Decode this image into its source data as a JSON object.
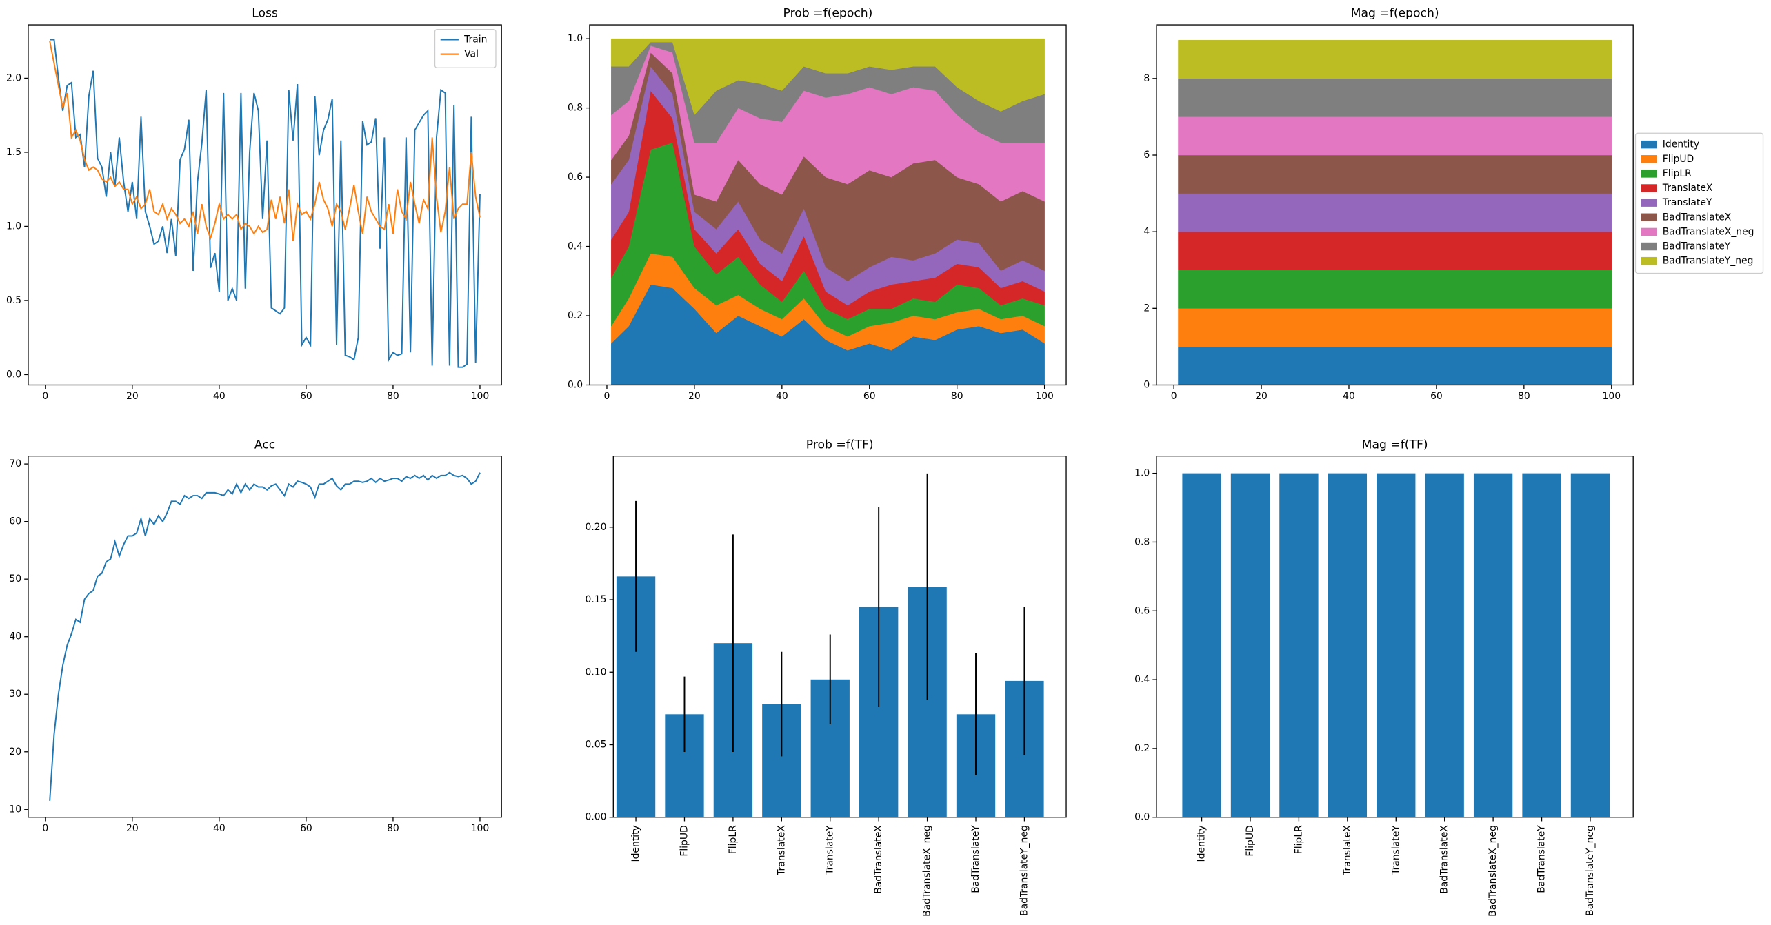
{
  "chart_data": [
    {
      "type": "line",
      "title": "Loss",
      "x": [
        1,
        2,
        3,
        4,
        5,
        6,
        7,
        8,
        9,
        10,
        11,
        12,
        13,
        14,
        15,
        16,
        17,
        18,
        19,
        20,
        21,
        22,
        23,
        24,
        25,
        26,
        27,
        28,
        29,
        30,
        31,
        32,
        33,
        34,
        35,
        36,
        37,
        38,
        39,
        40,
        41,
        42,
        43,
        44,
        45,
        46,
        47,
        48,
        49,
        50,
        51,
        52,
        53,
        54,
        55,
        56,
        57,
        58,
        59,
        60,
        61,
        62,
        63,
        64,
        65,
        66,
        67,
        68,
        69,
        70,
        71,
        72,
        73,
        74,
        75,
        76,
        77,
        78,
        79,
        80,
        81,
        82,
        83,
        84,
        85,
        86,
        87,
        88,
        89,
        90,
        91,
        92,
        93,
        94,
        95,
        96,
        97,
        98,
        99,
        100
      ],
      "series": [
        {
          "name": "Train",
          "color": "#1f77b4",
          "values": [
            2.26,
            2.26,
            2.0,
            1.78,
            1.95,
            1.97,
            1.6,
            1.62,
            1.4,
            1.88,
            2.05,
            1.46,
            1.4,
            1.2,
            1.5,
            1.27,
            1.6,
            1.3,
            1.1,
            1.3,
            1.05,
            1.74,
            1.1,
            1.0,
            0.88,
            0.9,
            1.0,
            0.82,
            1.05,
            0.8,
            1.45,
            1.52,
            1.72,
            0.7,
            1.3,
            1.56,
            1.92,
            0.72,
            0.82,
            0.56,
            1.9,
            0.5,
            0.58,
            0.5,
            1.9,
            0.58,
            1.5,
            1.9,
            1.78,
            1.05,
            1.58,
            0.45,
            0.43,
            0.41,
            0.45,
            1.92,
            1.58,
            1.96,
            0.2,
            0.25,
            0.2,
            1.88,
            1.48,
            1.65,
            1.72,
            1.86,
            0.2,
            1.58,
            0.13,
            0.12,
            0.1,
            0.25,
            1.71,
            1.55,
            1.57,
            1.73,
            0.85,
            1.6,
            0.1,
            0.15,
            0.13,
            0.14,
            1.6,
            0.15,
            1.65,
            1.7,
            1.75,
            1.78,
            0.06,
            1.6,
            1.92,
            1.9,
            0.06,
            1.82,
            0.05,
            0.05,
            0.07,
            1.74,
            0.08,
            1.22
          ]
        },
        {
          "name": "Val",
          "color": "#ff7f0e",
          "values": [
            2.25,
            2.1,
            1.95,
            1.8,
            1.9,
            1.6,
            1.65,
            1.58,
            1.45,
            1.38,
            1.4,
            1.38,
            1.32,
            1.3,
            1.33,
            1.27,
            1.3,
            1.25,
            1.25,
            1.15,
            1.2,
            1.12,
            1.15,
            1.25,
            1.1,
            1.08,
            1.15,
            1.05,
            1.12,
            1.08,
            1.02,
            1.05,
            1.0,
            1.1,
            0.95,
            1.15,
            1.0,
            0.92,
            1.02,
            1.15,
            1.05,
            1.08,
            1.05,
            1.08,
            0.98,
            1.02,
            1.0,
            0.95,
            1.0,
            0.96,
            0.98,
            1.18,
            1.05,
            1.2,
            1.02,
            1.25,
            0.9,
            1.15,
            1.08,
            1.1,
            1.05,
            1.15,
            1.3,
            1.18,
            1.12,
            1.0,
            1.15,
            1.1,
            0.98,
            1.12,
            1.28,
            1.1,
            0.95,
            1.2,
            1.1,
            1.05,
            1.0,
            0.98,
            1.15,
            0.95,
            1.25,
            1.1,
            1.05,
            1.3,
            1.15,
            1.02,
            1.18,
            1.12,
            1.6,
            1.2,
            0.96,
            1.1,
            1.4,
            1.05,
            1.12,
            1.15,
            1.15,
            1.5,
            1.2,
            1.06
          ]
        }
      ],
      "xlim": [
        -3.95,
        104.95
      ],
      "xticks": [
        0,
        20,
        40,
        60,
        80,
        100
      ],
      "ylim": [
        -0.07,
        2.36
      ],
      "yticks": [
        {
          "value": 0,
          "label": "0.0"
        },
        0.5,
        {
          "value": 1,
          "label": "1.0"
        },
        1.5,
        {
          "value": 2,
          "label": "2.0"
        }
      ],
      "legend": "upper right"
    },
    {
      "type": "area",
      "stacked": true,
      "title": "Prob =f(epoch)",
      "x": [
        1,
        5,
        10,
        15,
        20,
        25,
        30,
        35,
        40,
        45,
        50,
        55,
        60,
        65,
        70,
        75,
        80,
        85,
        90,
        95,
        100
      ],
      "series": [
        {
          "name": "Identity",
          "color": "#1f77b4",
          "values": [
            0.12,
            0.17,
            0.29,
            0.28,
            0.22,
            0.15,
            0.2,
            0.17,
            0.14,
            0.19,
            0.13,
            0.1,
            0.12,
            0.1,
            0.14,
            0.13,
            0.16,
            0.17,
            0.15,
            0.16,
            0.12
          ]
        },
        {
          "name": "FlipUD",
          "color": "#ff7f0e",
          "values": [
            0.05,
            0.08,
            0.09,
            0.09,
            0.06,
            0.08,
            0.06,
            0.05,
            0.05,
            0.06,
            0.04,
            0.04,
            0.05,
            0.08,
            0.06,
            0.06,
            0.05,
            0.05,
            0.04,
            0.04,
            0.05
          ]
        },
        {
          "name": "FlipLR",
          "color": "#2ca02c",
          "values": [
            0.14,
            0.15,
            0.3,
            0.33,
            0.12,
            0.09,
            0.11,
            0.07,
            0.05,
            0.08,
            0.05,
            0.05,
            0.05,
            0.04,
            0.05,
            0.05,
            0.08,
            0.06,
            0.04,
            0.05,
            0.06
          ]
        },
        {
          "name": "TranslateX",
          "color": "#d62728",
          "values": [
            0.11,
            0.1,
            0.17,
            0.07,
            0.05,
            0.06,
            0.08,
            0.06,
            0.06,
            0.1,
            0.05,
            0.04,
            0.05,
            0.07,
            0.05,
            0.07,
            0.06,
            0.06,
            0.05,
            0.05,
            0.04
          ]
        },
        {
          "name": "TranslateY",
          "color": "#9467bd",
          "values": [
            0.16,
            0.15,
            0.07,
            0.07,
            0.05,
            0.07,
            0.08,
            0.07,
            0.08,
            0.08,
            0.07,
            0.07,
            0.07,
            0.08,
            0.06,
            0.07,
            0.07,
            0.07,
            0.05,
            0.06,
            0.06
          ]
        },
        {
          "name": "BadTranslateX",
          "color": "#8c564b",
          "values": [
            0.07,
            0.07,
            0.04,
            0.06,
            0.05,
            0.08,
            0.12,
            0.16,
            0.17,
            0.15,
            0.26,
            0.28,
            0.28,
            0.23,
            0.28,
            0.27,
            0.18,
            0.17,
            0.2,
            0.2,
            0.2
          ]
        },
        {
          "name": "BadTranslateX_neg",
          "color": "#e377c2",
          "values": [
            0.13,
            0.1,
            0.02,
            0.06,
            0.15,
            0.17,
            0.15,
            0.19,
            0.21,
            0.19,
            0.23,
            0.26,
            0.24,
            0.24,
            0.22,
            0.2,
            0.18,
            0.15,
            0.17,
            0.14,
            0.17
          ]
        },
        {
          "name": "BadTranslateY",
          "color": "#7f7f7f",
          "values": [
            0.14,
            0.1,
            0.01,
            0.03,
            0.08,
            0.15,
            0.08,
            0.1,
            0.09,
            0.07,
            0.07,
            0.06,
            0.06,
            0.07,
            0.06,
            0.07,
            0.08,
            0.09,
            0.09,
            0.12,
            0.14
          ]
        },
        {
          "name": "BadTranslateY_neg",
          "color": "#bcbd22",
          "values": [
            0.08,
            0.08,
            0.01,
            0.01,
            0.22,
            0.15,
            0.12,
            0.13,
            0.15,
            0.08,
            0.1,
            0.1,
            0.08,
            0.09,
            0.08,
            0.08,
            0.14,
            0.18,
            0.21,
            0.18,
            0.16
          ]
        }
      ],
      "xlim": [
        -3.95,
        104.95
      ],
      "xticks": [
        0,
        20,
        40,
        60,
        80,
        100
      ],
      "ylim": [
        0,
        1.04
      ],
      "yticks": [
        {
          "value": 0,
          "label": "0.0"
        },
        0.2,
        0.4,
        0.6,
        0.8,
        {
          "value": 1,
          "label": "1.0"
        }
      ]
    },
    {
      "type": "area",
      "stacked": true,
      "title": "Mag =f(epoch)",
      "x": [
        1,
        100
      ],
      "series": [
        {
          "name": "Identity",
          "color": "#1f77b4",
          "values": [
            1,
            1
          ]
        },
        {
          "name": "FlipUD",
          "color": "#ff7f0e",
          "values": [
            1,
            1
          ]
        },
        {
          "name": "FlipLR",
          "color": "#2ca02c",
          "values": [
            1,
            1
          ]
        },
        {
          "name": "TranslateX",
          "color": "#d62728",
          "values": [
            1,
            1
          ]
        },
        {
          "name": "TranslateY",
          "color": "#9467bd",
          "values": [
            1,
            1
          ]
        },
        {
          "name": "BadTranslateX",
          "color": "#8c564b",
          "values": [
            1,
            1
          ]
        },
        {
          "name": "BadTranslateX_neg",
          "color": "#e377c2",
          "values": [
            1,
            1
          ]
        },
        {
          "name": "BadTranslateY",
          "color": "#7f7f7f",
          "values": [
            1,
            1
          ]
        },
        {
          "name": "BadTranslateY_neg",
          "color": "#bcbd22",
          "values": [
            1,
            1
          ]
        }
      ],
      "xlim": [
        -3.95,
        104.95
      ],
      "xticks": [
        0,
        20,
        40,
        60,
        80,
        100
      ],
      "ylim": [
        0,
        9.4
      ],
      "yticks": [
        0,
        2,
        4,
        6,
        8
      ],
      "legend": "right"
    },
    {
      "type": "line",
      "title": "Acc",
      "x": [
        1,
        2,
        3,
        4,
        5,
        6,
        7,
        8,
        9,
        10,
        11,
        12,
        13,
        14,
        15,
        16,
        17,
        18,
        19,
        20,
        21,
        22,
        23,
        24,
        25,
        26,
        27,
        28,
        29,
        30,
        31,
        32,
        33,
        34,
        35,
        36,
        37,
        38,
        39,
        40,
        41,
        42,
        43,
        44,
        45,
        46,
        47,
        48,
        49,
        50,
        51,
        52,
        53,
        54,
        55,
        56,
        57,
        58,
        59,
        60,
        61,
        62,
        63,
        64,
        65,
        66,
        67,
        68,
        69,
        70,
        71,
        72,
        73,
        74,
        75,
        76,
        77,
        78,
        79,
        80,
        81,
        82,
        83,
        84,
        85,
        86,
        87,
        88,
        89,
        90,
        91,
        92,
        93,
        94,
        95,
        96,
        97,
        98,
        99,
        100
      ],
      "series": [
        {
          "color": "#1f77b4",
          "values": [
            11.5,
            23,
            30,
            35,
            38.5,
            40.5,
            43,
            42.5,
            46.5,
            47.5,
            48,
            50.5,
            51,
            53,
            53.5,
            56.5,
            54,
            56,
            57.5,
            57.5,
            58,
            60.5,
            57.5,
            60.5,
            59.5,
            61,
            60,
            61.5,
            63.5,
            63.5,
            63,
            64.5,
            64,
            64.5,
            64.5,
            64,
            65,
            65,
            65,
            64.8,
            64.5,
            65.5,
            64.8,
            66.5,
            65,
            66.5,
            65.5,
            66.5,
            66,
            66,
            65.5,
            66.2,
            66.5,
            65.5,
            64.5,
            66.5,
            66,
            67,
            66.8,
            66.5,
            66,
            64.2,
            66.5,
            66.5,
            67,
            67.5,
            66.2,
            65.5,
            66.5,
            66.5,
            67,
            67,
            66.8,
            67,
            67.5,
            66.8,
            67.5,
            67,
            67.2,
            67.5,
            67.5,
            67,
            67.8,
            67.5,
            68,
            67.5,
            68,
            67.2,
            68,
            67.5,
            68,
            68,
            68.5,
            68,
            67.8,
            68,
            67.5,
            66.5,
            67,
            68.5
          ]
        }
      ],
      "xlim": [
        -3.95,
        104.95
      ],
      "xticks": [
        0,
        20,
        40,
        60,
        80,
        100
      ],
      "ylim": [
        8.63,
        71.37
      ],
      "yticks": [
        10,
        20,
        30,
        40,
        50,
        60,
        70
      ]
    },
    {
      "type": "bar",
      "title": "Prob =f(TF)",
      "categories": [
        "Identity",
        "FlipUD",
        "FlipLR",
        "TranslateX",
        "TranslateY",
        "BadTranslateX",
        "BadTranslateX_neg",
        "BadTranslateY",
        "BadTranslateY_neg"
      ],
      "values": [
        0.166,
        0.071,
        0.12,
        0.078,
        0.095,
        0.145,
        0.159,
        0.071,
        0.094
      ],
      "errors": [
        0.052,
        0.026,
        0.075,
        0.036,
        0.031,
        0.069,
        0.078,
        0.042,
        0.051
      ],
      "color": "#1f77b4",
      "error_color": "#000000",
      "ylim": [
        0,
        0.249
      ],
      "yticks": [
        {
          "value": 0,
          "label": "0.00"
        },
        0.05,
        {
          "value": 0.1,
          "label": "0.10"
        },
        0.15,
        {
          "value": 0.2,
          "label": "0.20"
        }
      ]
    },
    {
      "type": "bar",
      "title": "Mag =f(TF)",
      "categories": [
        "Identity",
        "FlipUD",
        "FlipLR",
        "TranslateX",
        "TranslateY",
        "BadTranslateX",
        "BadTranslateX_neg",
        "BadTranslateY",
        "BadTranslateY_neg"
      ],
      "values": [
        1,
        1,
        1,
        1,
        1,
        1,
        1,
        1,
        1
      ],
      "color": "#1f77b4",
      "ylim": [
        0,
        1.05
      ],
      "yticks": [
        {
          "value": 0,
          "label": "0.0"
        },
        0.2,
        0.4,
        0.6,
        0.8,
        {
          "value": 1,
          "label": "1.0"
        }
      ]
    }
  ]
}
